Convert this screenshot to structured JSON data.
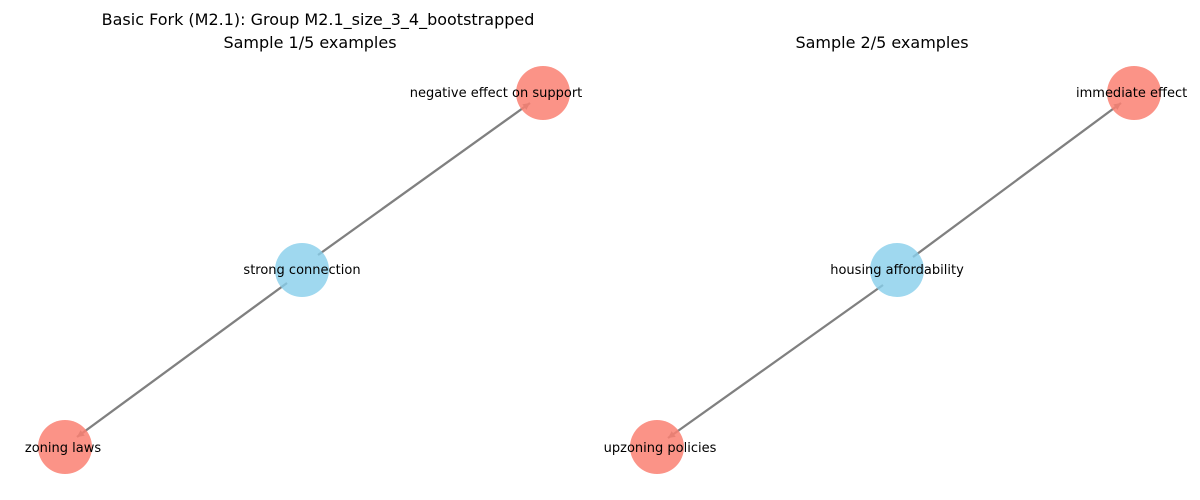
{
  "figure": {
    "background": "#ffffff",
    "node_colors": {
      "hub": "#87ceeb",
      "endpoint": "#fa8072"
    },
    "edge_color": "#808080"
  },
  "panels": [
    {
      "title_line1": "Basic Fork (M2.1): Group M2.1_size_3_4_bootstrapped",
      "title_line2": "Sample 1/5 examples",
      "nodes": [
        {
          "id": "center",
          "label": "strong connection",
          "role": "hub"
        },
        {
          "id": "top",
          "label": "negative effect on support",
          "role": "endpoint"
        },
        {
          "id": "bottom",
          "label": "zoning laws",
          "role": "endpoint"
        }
      ],
      "edges": [
        {
          "from": "center",
          "to": "top"
        },
        {
          "from": "center",
          "to": "bottom"
        }
      ]
    },
    {
      "title_line1": "",
      "title_line2": "Sample 2/5 examples",
      "nodes": [
        {
          "id": "center",
          "label": "housing affordability",
          "role": "hub"
        },
        {
          "id": "top",
          "label": "immediate effect",
          "role": "endpoint"
        },
        {
          "id": "bottom",
          "label": "upzoning policies",
          "role": "endpoint"
        }
      ],
      "edges": [
        {
          "from": "center",
          "to": "top"
        },
        {
          "from": "center",
          "to": "bottom"
        }
      ]
    }
  ]
}
